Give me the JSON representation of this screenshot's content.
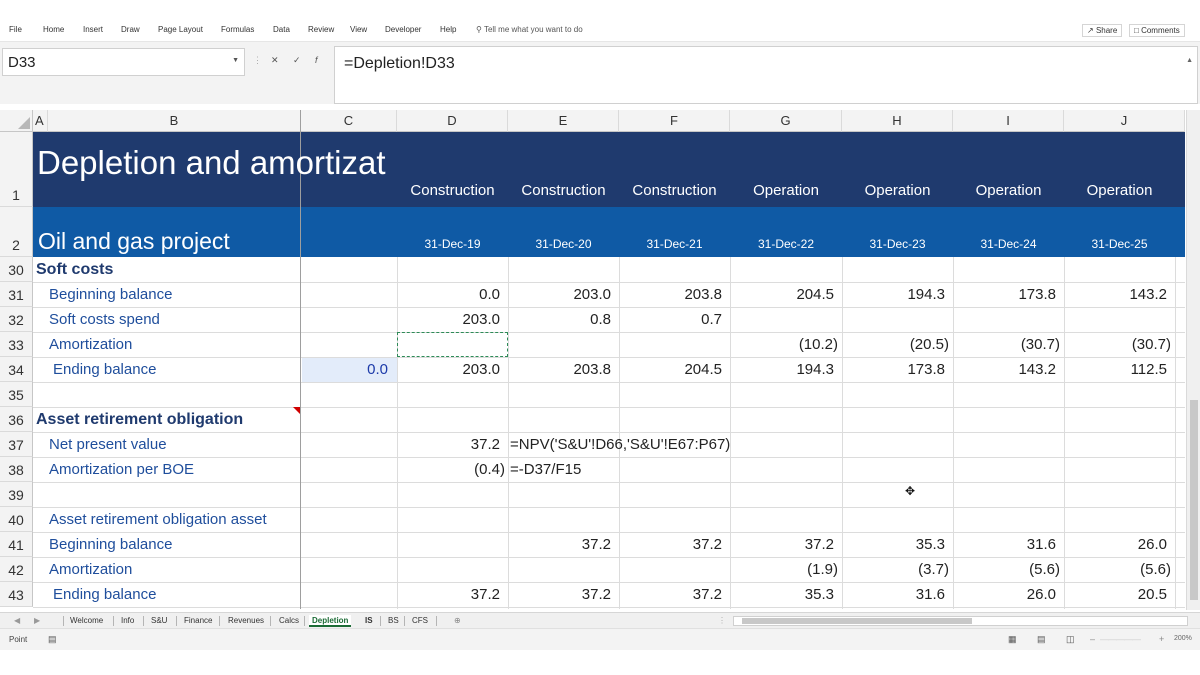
{
  "ribbon": {
    "tabs": [
      "File",
      "Home",
      "Insert",
      "Draw",
      "Page Layout",
      "Formulas",
      "Data",
      "Review",
      "View",
      "Developer",
      "Help"
    ],
    "tell_me": "Tell me what you want to do",
    "share": "Share",
    "comments": "Comments"
  },
  "formula_bar": {
    "name_box": "D33",
    "formula": "=Depletion!D33"
  },
  "grid": {
    "columns": [
      "A",
      "B",
      "C",
      "D",
      "E",
      "F",
      "G",
      "H",
      "I",
      "J"
    ],
    "rows": [
      "1",
      "2",
      "30",
      "31",
      "32",
      "33",
      "34",
      "35",
      "36",
      "37",
      "38",
      "39",
      "40",
      "41",
      "42",
      "43"
    ],
    "header": {
      "title": "Depletion and amortizat",
      "subtitle": "Oil and gas project",
      "phases": [
        "Construction",
        "Construction",
        "Construction",
        "Operation",
        "Operation",
        "Operation",
        "Operation"
      ],
      "dates": [
        "31-Dec-19",
        "31-Dec-20",
        "31-Dec-21",
        "31-Dec-22",
        "31-Dec-23",
        "31-Dec-24",
        "31-Dec-25"
      ]
    },
    "body": [
      {
        "label": "Soft costs",
        "style": "section",
        "c": "",
        "values": [
          "",
          "",
          "",
          "",
          "",
          "",
          ""
        ]
      },
      {
        "label": "Beginning balance",
        "style": "item",
        "c": "",
        "values": [
          "0.0",
          "203.0",
          "203.8",
          "204.5",
          "194.3",
          "173.8",
          "143.2"
        ]
      },
      {
        "label": "Soft costs spend",
        "style": "item",
        "c": "",
        "values": [
          "203.0",
          "0.8",
          "0.7",
          "",
          "",
          "",
          ""
        ]
      },
      {
        "label": "Amortization",
        "style": "item",
        "c": "",
        "values": [
          "",
          "",
          "",
          "(10.2)",
          "(20.5)",
          "(30.7)",
          "(30.7)"
        ]
      },
      {
        "label": "Ending balance",
        "style": "item-indent",
        "c": "0.0",
        "values": [
          "203.0",
          "203.8",
          "204.5",
          "194.3",
          "173.8",
          "143.2",
          "112.5"
        ]
      },
      {
        "label": "",
        "style": "item",
        "c": "",
        "values": [
          "",
          "",
          "",
          "",
          "",
          "",
          ""
        ]
      },
      {
        "label": "Asset retirement obligation",
        "style": "section",
        "c": "",
        "values": [
          "",
          "",
          "",
          "",
          "",
          "",
          ""
        ]
      },
      {
        "label": "Net present value",
        "style": "item",
        "c": "",
        "values": [
          "37.2",
          "",
          "",
          "",
          "",
          "",
          ""
        ],
        "formula_text": "=NPV('S&U'!D66,'S&U'!E67:P67)"
      },
      {
        "label": "Amortization per BOE",
        "style": "item",
        "c": "",
        "values": [
          "(0.4)",
          "",
          "",
          "",
          "",
          "",
          ""
        ],
        "formula_text": "=-D37/F15"
      },
      {
        "label": "",
        "style": "item",
        "c": "",
        "values": [
          "",
          "",
          "",
          "",
          "",
          "",
          ""
        ]
      },
      {
        "label": "Asset retirement obligation asset",
        "style": "item",
        "c": "",
        "values": [
          "",
          "",
          "",
          "",
          "",
          "",
          ""
        ]
      },
      {
        "label": "Beginning balance",
        "style": "item",
        "c": "",
        "values": [
          "",
          "37.2",
          "37.2",
          "37.2",
          "35.3",
          "31.6",
          "26.0"
        ]
      },
      {
        "label": "Amortization",
        "style": "item",
        "c": "",
        "values": [
          "",
          "",
          "",
          "(1.9)",
          "(3.7)",
          "(5.6)",
          "(5.6)"
        ]
      },
      {
        "label": "Ending balance",
        "style": "item-indent",
        "c": "",
        "values": [
          "37.2",
          "37.2",
          "37.2",
          "35.3",
          "31.6",
          "26.0",
          "20.5"
        ]
      }
    ]
  },
  "sheet_tabs": [
    "Welcome",
    "Info",
    "S&U",
    "Finance",
    "Revenues",
    "Calcs",
    "Depletion",
    "IS",
    "BS",
    "CFS"
  ],
  "active_tab": "Depletion",
  "status": {
    "mode": "Point",
    "zoom": "200%"
  },
  "colors": {
    "header_dark": "#1f3a6e",
    "header_blue": "#0f5aa5",
    "label_blue": "#1f4e9c",
    "active_tab_green": "#1b6b35"
  }
}
